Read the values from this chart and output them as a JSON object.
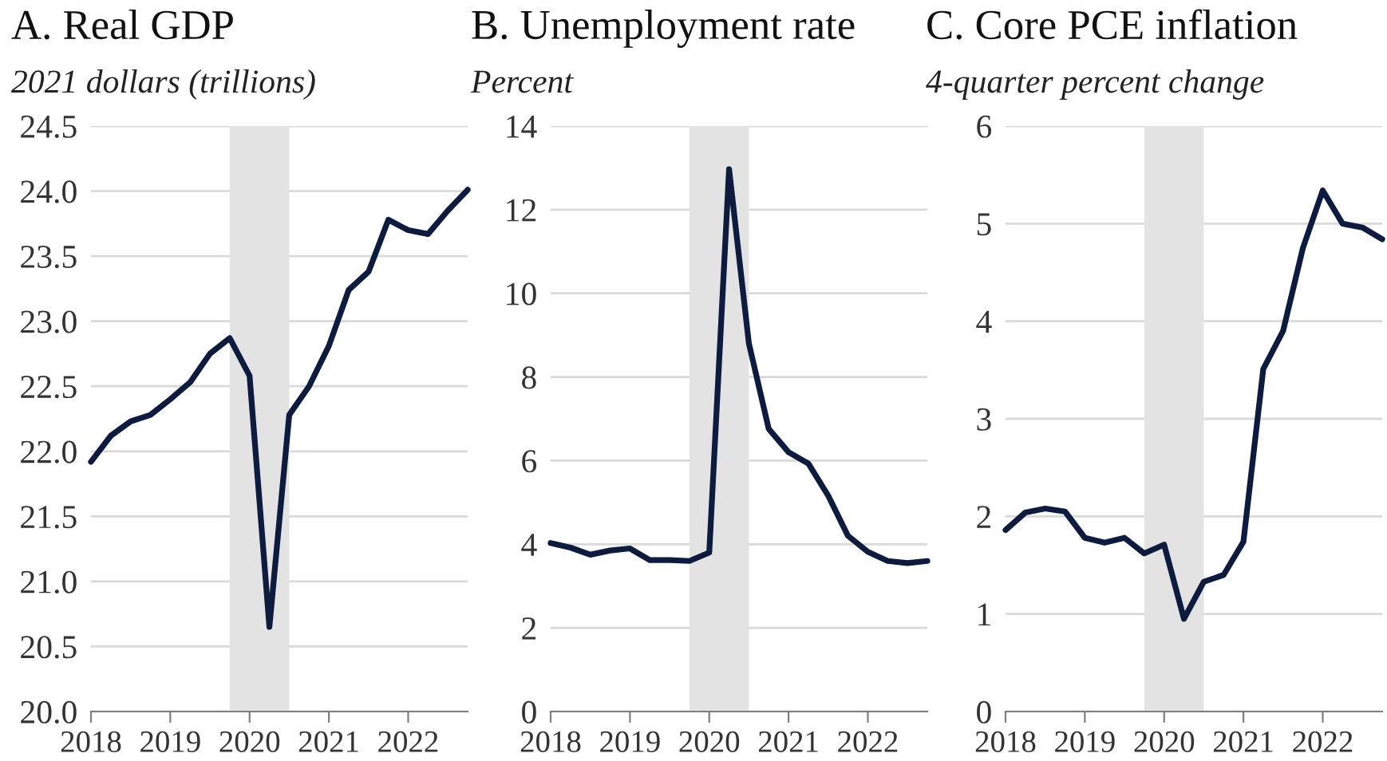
{
  "chart_data": [
    {
      "type": "line",
      "title": "A. Real GDP",
      "subtitle": "2021 dollars (trillions)",
      "x": [
        2018,
        2018.25,
        2018.5,
        2018.75,
        2019,
        2019.25,
        2019.5,
        2019.75,
        2020,
        2020.25,
        2020.5,
        2020.75,
        2021,
        2021.25,
        2021.5,
        2021.75,
        2022,
        2022.25,
        2022.5,
        2022.75
      ],
      "series": [
        {
          "color": "#0d1b3e",
          "values": [
            21.92,
            22.12,
            22.23,
            22.28,
            22.4,
            22.53,
            22.75,
            22.87,
            22.58,
            20.65,
            22.28,
            22.5,
            22.81,
            23.24,
            23.38,
            23.78,
            23.7,
            23.67,
            23.85,
            24.01
          ]
        }
      ],
      "xlim": [
        2018,
        2022.75
      ],
      "xticks": [
        2018,
        2019,
        2020,
        2021,
        2022
      ],
      "ylim": [
        20,
        24.5
      ],
      "yticks": [
        {
          "value": 20,
          "label": "20.0"
        },
        20.5,
        {
          "value": 21,
          "label": "21.0"
        },
        21.5,
        {
          "value": 22,
          "label": "22.0"
        },
        22.5,
        {
          "value": 23,
          "label": "23.0"
        },
        23.5,
        {
          "value": 24,
          "label": "24.0"
        },
        24.5
      ],
      "bands": [
        {
          "axis": "x",
          "from": 2019.75,
          "to": 2020.5,
          "color": "#e3e3e3"
        }
      ],
      "grid": "y",
      "line_style": "solid",
      "marker": "none"
    },
    {
      "type": "line",
      "title": "B. Unemployment rate",
      "subtitle": "Percent",
      "x": [
        2018,
        2018.25,
        2018.5,
        2018.75,
        2019,
        2019.25,
        2019.5,
        2019.75,
        2020,
        2020.25,
        2020.5,
        2020.75,
        2021,
        2021.25,
        2021.5,
        2021.75,
        2022,
        2022.25,
        2022.5,
        2022.75
      ],
      "series": [
        {
          "color": "#0d1b3e",
          "values": [
            4.03,
            3.92,
            3.75,
            3.85,
            3.9,
            3.62,
            3.62,
            3.6,
            3.8,
            12.97,
            8.8,
            6.76,
            6.2,
            5.93,
            5.16,
            4.2,
            3.82,
            3.6,
            3.55,
            3.6
          ]
        }
      ],
      "xlim": [
        2018,
        2022.75
      ],
      "xticks": [
        2018,
        2019,
        2020,
        2021,
        2022
      ],
      "ylim": [
        0,
        14
      ],
      "yticks": [
        0,
        2,
        4,
        6,
        8,
        10,
        12,
        14
      ],
      "bands": [
        {
          "axis": "x",
          "from": 2019.75,
          "to": 2020.5,
          "color": "#e3e3e3"
        }
      ],
      "grid": "y",
      "line_style": "solid",
      "marker": "none"
    },
    {
      "type": "line",
      "title": "C. Core PCE inflation",
      "subtitle": "4-quarter percent change",
      "x": [
        2018,
        2018.25,
        2018.5,
        2018.75,
        2019,
        2019.25,
        2019.5,
        2019.75,
        2020,
        2020.25,
        2020.5,
        2020.75,
        2021,
        2021.25,
        2021.5,
        2021.75,
        2022,
        2022.25,
        2022.5,
        2022.75
      ],
      "series": [
        {
          "color": "#0d1b3e",
          "values": [
            1.86,
            2.04,
            2.08,
            2.05,
            1.78,
            1.73,
            1.78,
            1.62,
            1.71,
            0.95,
            1.33,
            1.4,
            1.74,
            3.51,
            3.9,
            4.75,
            5.34,
            5.0,
            4.96,
            4.84
          ]
        }
      ],
      "xlim": [
        2018,
        2022.75
      ],
      "xticks": [
        2018,
        2019,
        2020,
        2021,
        2022
      ],
      "ylim": [
        0,
        6
      ],
      "yticks": [
        0,
        1,
        2,
        3,
        4,
        5,
        6
      ],
      "bands": [
        {
          "axis": "x",
          "from": 2019.75,
          "to": 2020.5,
          "color": "#e3e3e3"
        }
      ],
      "grid": "y",
      "line_style": "solid",
      "marker": "none"
    }
  ]
}
